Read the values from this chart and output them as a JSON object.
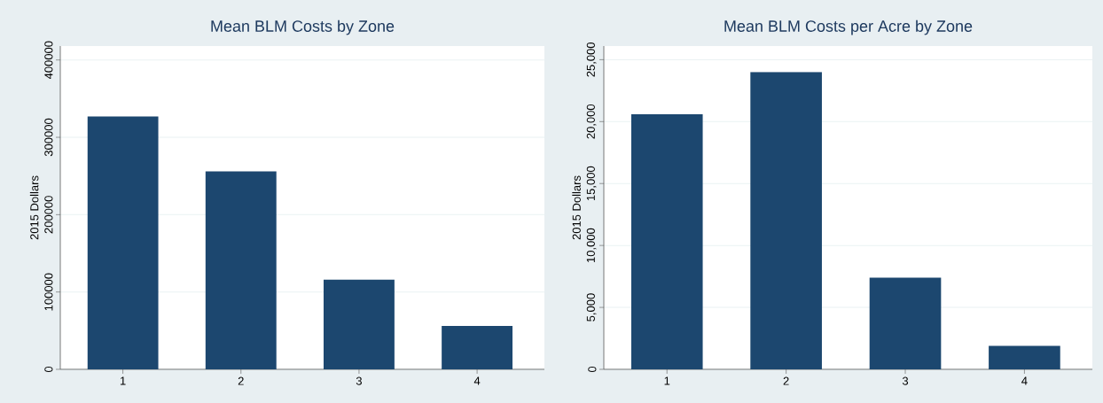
{
  "chart_data": [
    {
      "type": "bar",
      "title": "Mean BLM Costs by Zone",
      "ylabel": "2015 Dollars",
      "categories": [
        "1",
        "2",
        "3",
        "4"
      ],
      "values": [
        327000,
        256000,
        116000,
        56000
      ],
      "color": "#1c476f",
      "ylim": [
        0,
        418000
      ],
      "yticks": [
        0,
        100000,
        200000,
        300000,
        400000
      ],
      "grid": "y"
    },
    {
      "type": "bar",
      "title": "Mean BLM Costs per Acre by Zone",
      "ylabel": "2015 Dollars",
      "categories": [
        "1",
        "2",
        "3",
        "4"
      ],
      "values": [
        20600,
        24000,
        7400,
        1900
      ],
      "color": "#1c476f",
      "ylim": [
        0,
        26100
      ],
      "yticks": [
        0,
        {
          "value": 5000,
          "label": "5,000"
        },
        {
          "value": 10000,
          "label": "10,000"
        },
        {
          "value": 15000,
          "label": "15,000"
        },
        {
          "value": 20000,
          "label": "20,000"
        },
        {
          "value": 25000,
          "label": "25,000"
        }
      ],
      "grid": "y"
    }
  ]
}
